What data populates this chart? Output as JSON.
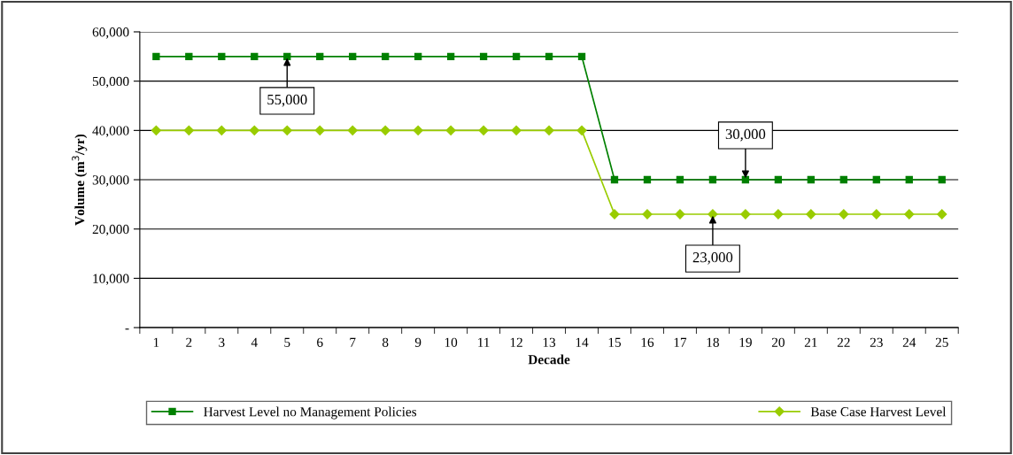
{
  "chart_data": {
    "type": "line",
    "xlabel": "Decade",
    "ylabel": "Volume (m$^{3}$/yr)",
    "categories": [
      "1",
      "2",
      "3",
      "4",
      "5",
      "6",
      "7",
      "8",
      "9",
      "10",
      "11",
      "12",
      "13",
      "14",
      "15",
      "16",
      "17",
      "18",
      "19",
      "20",
      "21",
      "22",
      "23",
      "24",
      "25"
    ],
    "series": [
      {
        "name": "Harvest Level no Management Policies",
        "color": "#008000",
        "marker": "square",
        "values": [
          55000,
          55000,
          55000,
          55000,
          55000,
          55000,
          55000,
          55000,
          55000,
          55000,
          55000,
          55000,
          55000,
          55000,
          30000,
          30000,
          30000,
          30000,
          30000,
          30000,
          30000,
          30000,
          30000,
          30000,
          30000
        ]
      },
      {
        "name": "Base Case Harvest Level",
        "color": "#99cc00",
        "marker": "diamond",
        "values": [
          40000,
          40000,
          40000,
          40000,
          40000,
          40000,
          40000,
          40000,
          40000,
          40000,
          40000,
          40000,
          40000,
          40000,
          23000,
          23000,
          23000,
          23000,
          23000,
          23000,
          23000,
          23000,
          23000,
          23000,
          23000
        ]
      }
    ],
    "ylim": [
      0,
      60000
    ],
    "yticks": [
      {
        "value": 0,
        "label": "-"
      },
      {
        "value": 10000,
        "label": "10,000"
      },
      {
        "value": 20000,
        "label": "20,000"
      },
      {
        "value": 30000,
        "label": "30,000"
      },
      {
        "value": 40000,
        "label": "40,000"
      },
      {
        "value": 50000,
        "label": "50,000"
      },
      {
        "value": 60000,
        "label": "60,000"
      }
    ],
    "grid": "y",
    "legend": "bottom",
    "line_style": "solid",
    "annotations": [
      {
        "text": "55,000",
        "x": "5",
        "y": 55000
      },
      {
        "text": "30,000",
        "x": "19",
        "y": 30000
      },
      {
        "text": "23,000",
        "x": "18",
        "y": 23000
      }
    ]
  }
}
